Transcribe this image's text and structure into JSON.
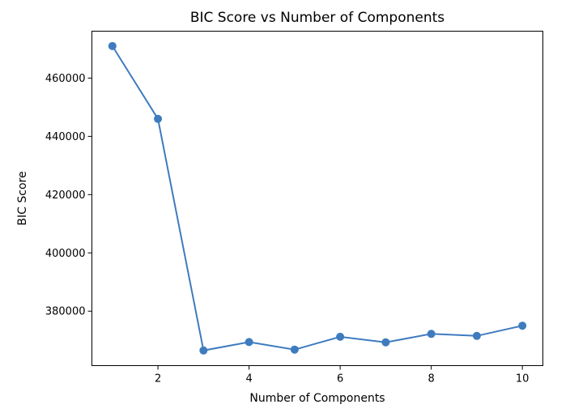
{
  "chart_data": {
    "type": "line",
    "title": "BIC Score vs Number of Components",
    "xlabel": "Number of Components",
    "ylabel": "BIC Score",
    "x": [
      1,
      2,
      3,
      4,
      5,
      6,
      7,
      8,
      9,
      10
    ],
    "series": [
      {
        "values": [
          471000,
          446000,
          366500,
          369400,
          366800,
          371200,
          369300,
          372200,
          371500,
          375000
        ],
        "color": "#3e7bbf",
        "marker": "circle"
      }
    ],
    "xticks": [
      2,
      4,
      6,
      8,
      10
    ],
    "yticks": [
      380000,
      400000,
      420000,
      440000,
      460000
    ],
    "xtick_labels": [
      "2",
      "4",
      "6",
      "8",
      "10"
    ],
    "ytick_labels": [
      "380000",
      "400000",
      "420000",
      "440000",
      "460000"
    ],
    "xlim": [
      0.55,
      10.45
    ],
    "ylim": [
      361300,
      476100
    ],
    "grid": false,
    "legend": false
  }
}
